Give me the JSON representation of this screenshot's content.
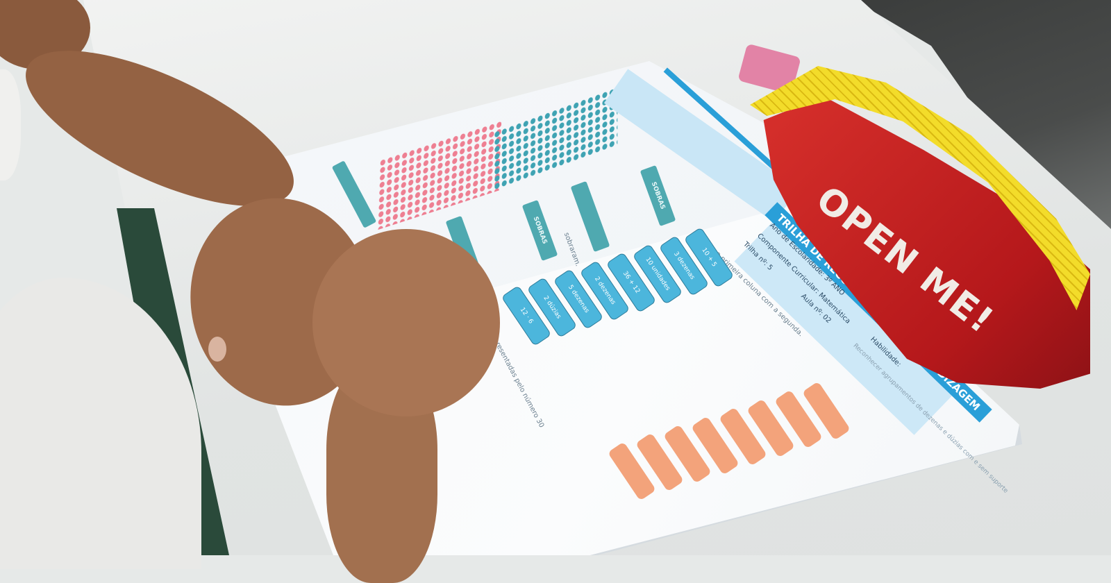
{
  "workbook": {
    "header_title": "TRILHA DE RECOMPOSIÇÃO DA APRENDIZAGEM",
    "info": {
      "grade": "Ano de Escolaridade: 3º ANO",
      "subject": "Componente Curricular: Matemática",
      "trail": "Trilha nº: 5",
      "lesson": "Aula nº: 02",
      "skill_label": "Habilidade:",
      "skill_text": "Reconhecer agrupamentos de dezenas e dúzias com e sem suporte"
    },
    "instruction": "Ligue a primeira coluna com a segunda.",
    "question_fragment": "...s são representadas pelo número 30",
    "blue_chips": [
      "12 · 6",
      "2 dúzias",
      "5 dezenas",
      "2 dezenas",
      "36 + 12",
      "10 unidades",
      "3 dezenas",
      "10 + 5"
    ],
    "left_page": {
      "tabs": [
        "SOBRAS",
        "SOBRAS",
        "SOBRAS"
      ],
      "fragment": "sobraram."
    },
    "colors": {
      "header_blue": "#2a9fd8",
      "chip_blue": "#4cb6dc",
      "chip_orange": "#f3a37b",
      "dots_pink": "#ee7f92",
      "dots_teal": "#3fa3b3"
    }
  },
  "pencil_case": {
    "print": "OPEN ME!",
    "colors": {
      "fabric": "#c8201f",
      "zipper": "#f3dc2a"
    }
  }
}
